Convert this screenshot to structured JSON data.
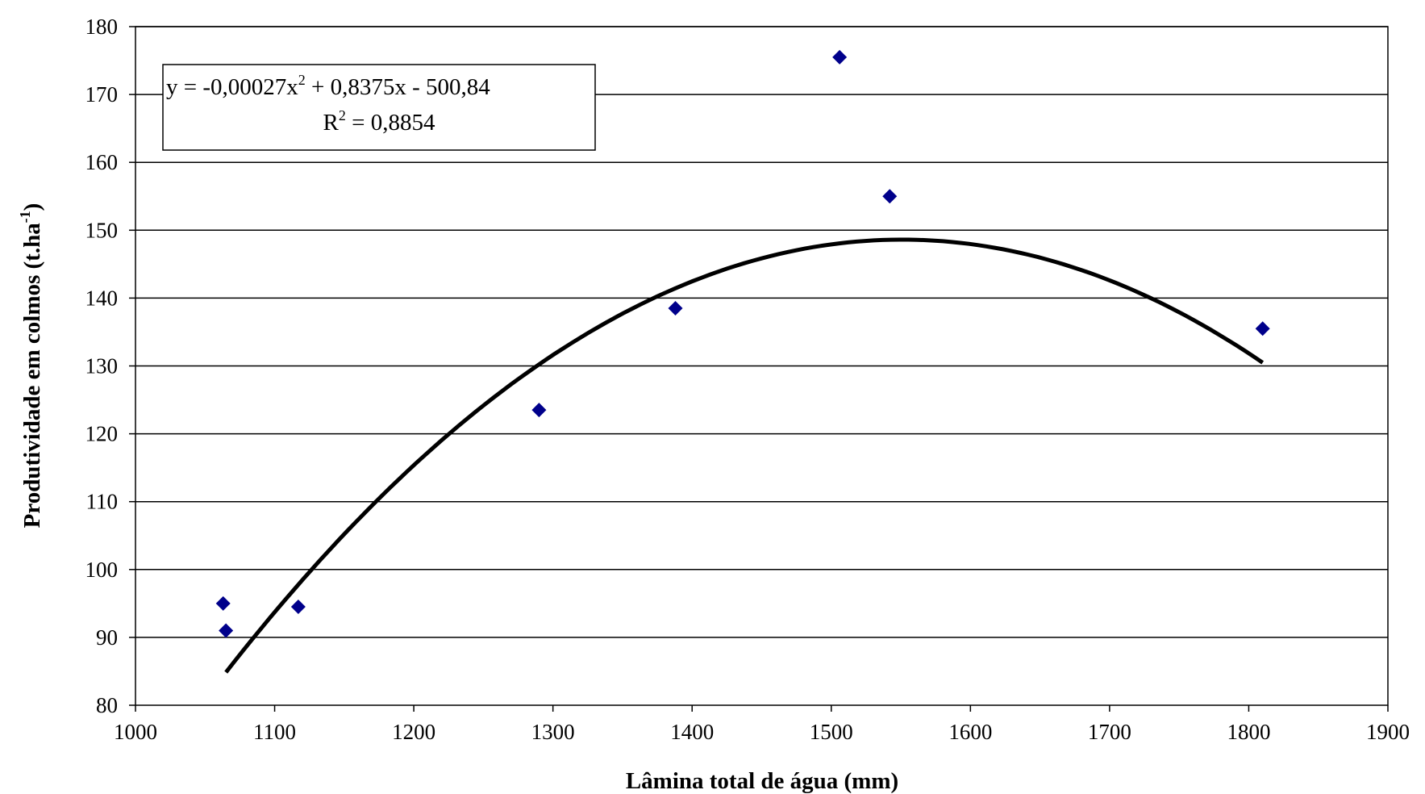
{
  "chart_data": {
    "type": "scatter",
    "xlabel": "Lâmina total de água (mm)",
    "ylabel_main": "Produtividade em colmos (t.ha",
    "ylabel_sup": "-1",
    "ylabel_close": ")",
    "xlim": [
      1000,
      1900
    ],
    "ylim": [
      80,
      180
    ],
    "x_ticks": [
      "1000",
      "1100",
      "1200",
      "1300",
      "1400",
      "1500",
      "1600",
      "1700",
      "1800",
      "1900"
    ],
    "y_ticks": [
      "80",
      "90",
      "100",
      "110",
      "120",
      "130",
      "140",
      "150",
      "160",
      "170",
      "180"
    ],
    "grid": "horizontal",
    "series": [
      {
        "marker": "diamond",
        "color": "#00008B",
        "points": [
          {
            "x": 1063,
            "y": 95
          },
          {
            "x": 1065,
            "y": 91
          },
          {
            "x": 1117,
            "y": 94.5
          },
          {
            "x": 1290,
            "y": 123.5
          },
          {
            "x": 1388,
            "y": 138.5
          },
          {
            "x": 1506,
            "y": 175.5
          },
          {
            "x": 1542,
            "y": 155
          },
          {
            "x": 1810,
            "y": 135.5
          }
        ]
      }
    ],
    "trendline": {
      "type": "polynomial",
      "color": "#000000",
      "x_range": [
        1065,
        1810
      ],
      "coefficients": {
        "a": -0.00027,
        "b": 0.8375,
        "c": -500.84
      }
    },
    "equation": {
      "part1": "y = -0,00027x",
      "sup1": "2",
      "part2": " + 0,8375x - 500,84",
      "r_part1": "R",
      "r_sup": "2",
      "r_part2": " = 0,8854"
    }
  }
}
